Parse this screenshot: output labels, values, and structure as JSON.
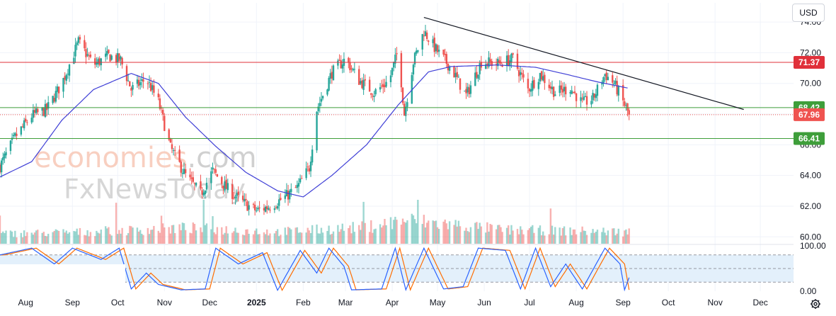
{
  "toolbar": {
    "currency": "USD"
  },
  "icons": {
    "settings": "gear-icon"
  },
  "watermark": {
    "line1a": "economies",
    "line1b": ".com",
    "line2": "FxNewsToday"
  },
  "colors": {
    "up": "#26a69a",
    "down": "#ef5350",
    "ma": "#3f3fd6",
    "resistance": "#e0303a",
    "support": "#3e9e3a",
    "trend": "#131722",
    "stoch_k": "#2962ff",
    "stoch_d": "#ff6d00",
    "stoch_band": "#e3f0fb"
  },
  "chart_data": [
    {
      "type": "candlestick",
      "title": "",
      "price_axis": {
        "ticks": [
          "74.00",
          "72.00",
          "70.00",
          "68.00",
          "66.00",
          "64.00",
          "62.00",
          "60.00"
        ],
        "ylim": [
          59.55,
          75.25
        ]
      },
      "time_axis": {
        "labels": [
          "Aug",
          "Sep",
          "Oct",
          "Nov",
          "Dec",
          "2025",
          "Feb",
          "Mar",
          "Apr",
          "May",
          "Jun",
          "Jul",
          "Aug",
          "Sep",
          "Oct",
          "Nov",
          "Dec"
        ],
        "label_dates": [
          "2024-08-01",
          "2024-09-01",
          "2024-10-01",
          "2024-11-01",
          "2024-12-01",
          "2025-01-01",
          "2025-02-01",
          "2025-03-01",
          "2025-04-01",
          "2025-05-01",
          "2025-06-01",
          "2025-07-01",
          "2025-08-01",
          "2025-09-01",
          "2025-10-01",
          "2025-11-01",
          "2025-12-01"
        ],
        "range": [
          "2024-07-15",
          "2025-12-23"
        ]
      },
      "last_price": {
        "value": 67.96,
        "label": "67.96"
      },
      "horizontal_levels": [
        {
          "name": "resistance",
          "value": 71.37,
          "label": "71.37"
        },
        {
          "name": "support-upper",
          "value": 68.42,
          "label": "68.42"
        },
        {
          "name": "support-lower",
          "value": 66.41,
          "label": "66.41"
        }
      ],
      "trendline": {
        "points": [
          {
            "x": "2025-04-22",
            "y": 74.3
          },
          {
            "x": "2025-11-20",
            "y": 68.3
          }
        ]
      },
      "moving_average_anchors": [
        {
          "x": "2024-07-15",
          "y": 63.9
        },
        {
          "x": "2024-08-05",
          "y": 64.9
        },
        {
          "x": "2024-08-25",
          "y": 67.6
        },
        {
          "x": "2024-09-15",
          "y": 69.6
        },
        {
          "x": "2024-10-10",
          "y": 70.65
        },
        {
          "x": "2024-10-28",
          "y": 70.0
        },
        {
          "x": "2024-11-15",
          "y": 67.8
        },
        {
          "x": "2024-12-05",
          "y": 65.9
        },
        {
          "x": "2024-12-25",
          "y": 64.2
        },
        {
          "x": "2025-01-15",
          "y": 63.0
        },
        {
          "x": "2025-02-01",
          "y": 62.6
        },
        {
          "x": "2025-02-20",
          "y": 64.0
        },
        {
          "x": "2025-03-15",
          "y": 66.0
        },
        {
          "x": "2025-04-05",
          "y": 68.6
        },
        {
          "x": "2025-04-25",
          "y": 70.75
        },
        {
          "x": "2025-05-10",
          "y": 71.1
        },
        {
          "x": "2025-06-10",
          "y": 71.2
        },
        {
          "x": "2025-07-05",
          "y": 71.05
        },
        {
          "x": "2025-07-25",
          "y": 70.6
        },
        {
          "x": "2025-08-15",
          "y": 70.1
        },
        {
          "x": "2025-09-04",
          "y": 69.7
        }
      ],
      "price_anchors": [
        {
          "x": "2024-07-15",
          "y": 64.6
        },
        {
          "x": "2024-07-25",
          "y": 66.5
        },
        {
          "x": "2024-08-05",
          "y": 67.9
        },
        {
          "x": "2024-08-15",
          "y": 68.3
        },
        {
          "x": "2024-08-25",
          "y": 70.0
        },
        {
          "x": "2024-09-05",
          "y": 72.7
        },
        {
          "x": "2024-09-15",
          "y": 71.2
        },
        {
          "x": "2024-09-25",
          "y": 71.8
        },
        {
          "x": "2024-10-03",
          "y": 71.5
        },
        {
          "x": "2024-10-10",
          "y": 69.6
        },
        {
          "x": "2024-10-20",
          "y": 70.3
        },
        {
          "x": "2024-10-28",
          "y": 68.8
        },
        {
          "x": "2024-11-05",
          "y": 65.8
        },
        {
          "x": "2024-11-15",
          "y": 64.0
        },
        {
          "x": "2024-11-25",
          "y": 62.8
        },
        {
          "x": "2024-12-03",
          "y": 64.3
        },
        {
          "x": "2024-12-12",
          "y": 63.2
        },
        {
          "x": "2024-12-22",
          "y": 62.3
        },
        {
          "x": "2025-01-01",
          "y": 61.7
        },
        {
          "x": "2025-01-10",
          "y": 62.0
        },
        {
          "x": "2025-01-20",
          "y": 62.6
        },
        {
          "x": "2025-01-28",
          "y": 63.2
        },
        {
          "x": "2025-02-05",
          "y": 64.5
        },
        {
          "x": "2025-02-10",
          "y": 68.3
        },
        {
          "x": "2025-02-20",
          "y": 70.7
        },
        {
          "x": "2025-03-01",
          "y": 71.6
        },
        {
          "x": "2025-03-10",
          "y": 70.2
        },
        {
          "x": "2025-03-20",
          "y": 69.4
        },
        {
          "x": "2025-03-30",
          "y": 70.2
        },
        {
          "x": "2025-04-05",
          "y": 72.2
        },
        {
          "x": "2025-04-09",
          "y": 68.0
        },
        {
          "x": "2025-04-15",
          "y": 71.4
        },
        {
          "x": "2025-04-22",
          "y": 73.4
        },
        {
          "x": "2025-04-30",
          "y": 72.2
        },
        {
          "x": "2025-05-10",
          "y": 71.0
        },
        {
          "x": "2025-05-20",
          "y": 69.2
        },
        {
          "x": "2025-05-30",
          "y": 71.4
        },
        {
          "x": "2025-06-10",
          "y": 71.3
        },
        {
          "x": "2025-06-20",
          "y": 71.6
        },
        {
          "x": "2025-06-30",
          "y": 69.6
        },
        {
          "x": "2025-07-08",
          "y": 70.6
        },
        {
          "x": "2025-07-18",
          "y": 69.4
        },
        {
          "x": "2025-07-28",
          "y": 69.7
        },
        {
          "x": "2025-08-05",
          "y": 68.7
        },
        {
          "x": "2025-08-12",
          "y": 69.0
        },
        {
          "x": "2025-08-20",
          "y": 70.6
        },
        {
          "x": "2025-08-26",
          "y": 70.0
        },
        {
          "x": "2025-09-02",
          "y": 68.6
        },
        {
          "x": "2025-09-05",
          "y": 67.96
        }
      ],
      "volume_anchors": [
        {
          "x": "2024-07-15",
          "y": 0.25
        },
        {
          "x": "2024-09-15",
          "y": 0.3
        },
        {
          "x": "2024-11-15",
          "y": 0.4
        },
        {
          "x": "2025-01-15",
          "y": 0.3
        },
        {
          "x": "2025-03-15",
          "y": 0.42
        },
        {
          "x": "2025-04-09",
          "y": 0.6
        },
        {
          "x": "2025-06-15",
          "y": 0.35
        },
        {
          "x": "2025-09-05",
          "y": 0.3
        }
      ],
      "volume_ylim": [
        0,
        1
      ]
    },
    {
      "type": "line",
      "title": "",
      "y_axis": {
        "ticks": [
          "100.00",
          "0.00"
        ],
        "ylim": [
          0,
          100
        ],
        "band": [
          20,
          80
        ],
        "midline": 50
      },
      "stochastic_anchors": [
        {
          "x": "2024-07-15",
          "y": 80
        },
        {
          "x": "2024-08-05",
          "y": 95
        },
        {
          "x": "2024-08-20",
          "y": 60
        },
        {
          "x": "2024-09-01",
          "y": 95
        },
        {
          "x": "2024-09-20",
          "y": 70
        },
        {
          "x": "2024-10-02",
          "y": 95
        },
        {
          "x": "2024-10-10",
          "y": 5
        },
        {
          "x": "2024-10-20",
          "y": 40
        },
        {
          "x": "2024-10-28",
          "y": 15
        },
        {
          "x": "2024-11-12",
          "y": 3
        },
        {
          "x": "2024-11-28",
          "y": 5
        },
        {
          "x": "2024-12-05",
          "y": 95
        },
        {
          "x": "2024-12-20",
          "y": 60
        },
        {
          "x": "2025-01-05",
          "y": 85
        },
        {
          "x": "2025-01-15",
          "y": 2
        },
        {
          "x": "2025-01-30",
          "y": 90
        },
        {
          "x": "2025-02-10",
          "y": 40
        },
        {
          "x": "2025-02-18",
          "y": 95
        },
        {
          "x": "2025-02-28",
          "y": 55
        },
        {
          "x": "2025-03-05",
          "y": 3
        },
        {
          "x": "2025-03-25",
          "y": 5
        },
        {
          "x": "2025-04-03",
          "y": 95
        },
        {
          "x": "2025-04-10",
          "y": 3
        },
        {
          "x": "2025-04-22",
          "y": 95
        },
        {
          "x": "2025-05-05",
          "y": 5
        },
        {
          "x": "2025-05-18",
          "y": 10
        },
        {
          "x": "2025-05-28",
          "y": 95
        },
        {
          "x": "2025-06-15",
          "y": 90
        },
        {
          "x": "2025-06-25",
          "y": 5
        },
        {
          "x": "2025-07-05",
          "y": 95
        },
        {
          "x": "2025-07-15",
          "y": 10
        },
        {
          "x": "2025-07-25",
          "y": 60
        },
        {
          "x": "2025-08-05",
          "y": 5
        },
        {
          "x": "2025-08-20",
          "y": 95
        },
        {
          "x": "2025-08-30",
          "y": 60
        },
        {
          "x": "2025-09-02",
          "y": 3
        },
        {
          "x": "2025-09-05",
          "y": 30
        }
      ]
    }
  ]
}
